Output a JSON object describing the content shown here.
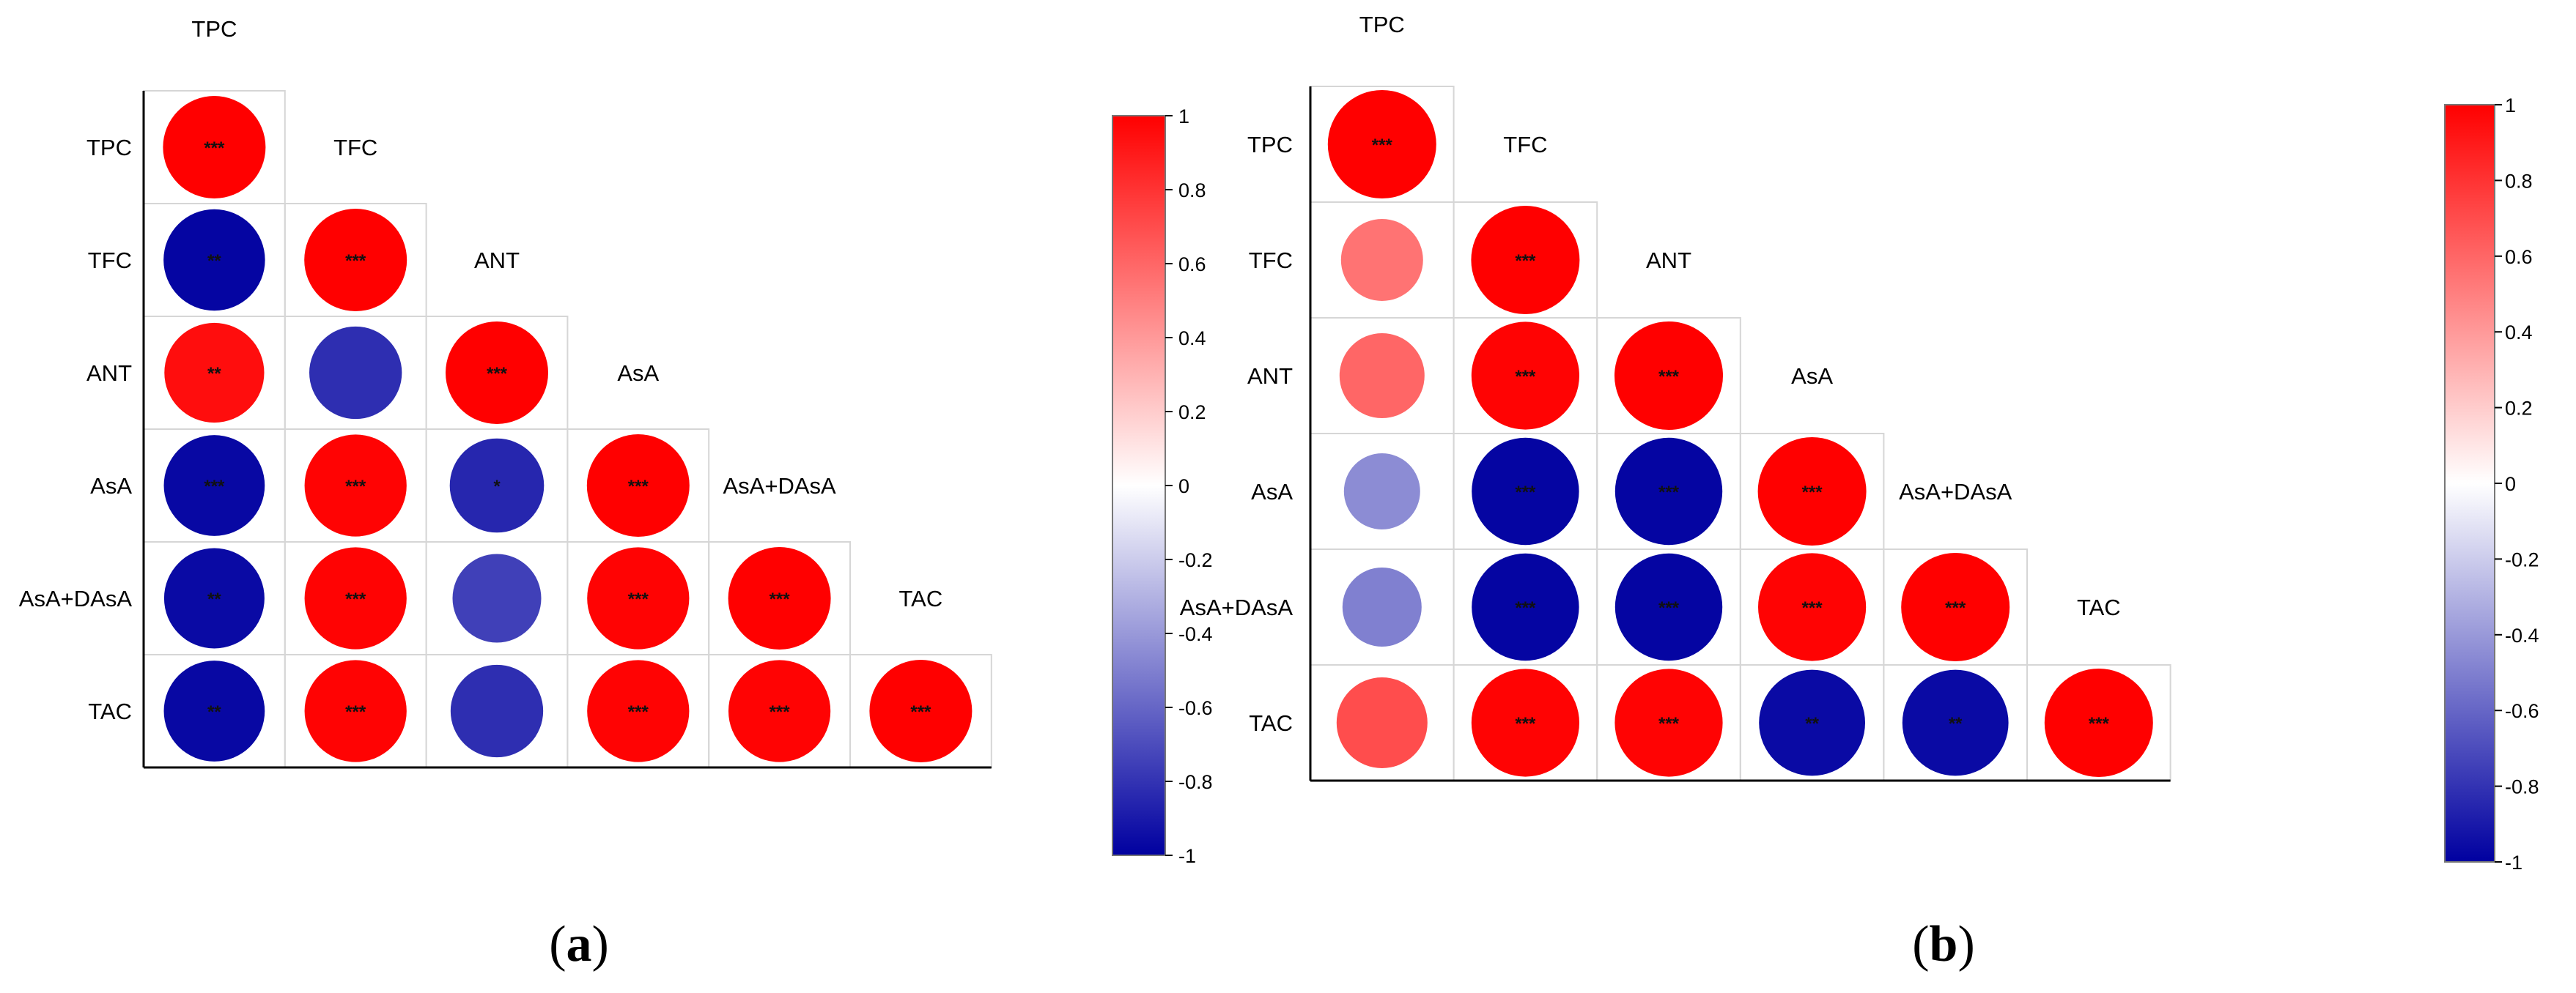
{
  "colors": {
    "positive": "#ff0000",
    "zero": "#ffffff",
    "negative": "#0000a0",
    "grid": "#d6d6d6",
    "axis": "#000000"
  },
  "colorbar": {
    "ticks": [
      1,
      0.8,
      0.6,
      0.4,
      0.2,
      0,
      -0.2,
      -0.4,
      -0.6,
      -0.8,
      -1
    ],
    "tick_labels": [
      "1",
      "0.8",
      "0.6",
      "0.4",
      "0.2",
      "0",
      "-0.2",
      "-0.4",
      "-0.6",
      "-0.8",
      "-1"
    ]
  },
  "chart_data": [
    {
      "type": "heatmap",
      "panel_label": "a",
      "variables": [
        "TPC",
        "TFC",
        "ANT",
        "AsA",
        "AsA+DAsA",
        "TAC"
      ],
      "range": [
        -1,
        1
      ],
      "cells": [
        {
          "row": "TPC",
          "col": "TPC",
          "r": 1.0,
          "sig": "***"
        },
        {
          "row": "TFC",
          "col": "TPC",
          "r": -0.98,
          "sig": "**"
        },
        {
          "row": "TFC",
          "col": "TFC",
          "r": 1.0,
          "sig": "***"
        },
        {
          "row": "ANT",
          "col": "TPC",
          "r": 0.95,
          "sig": "**"
        },
        {
          "row": "ANT",
          "col": "TFC",
          "r": -0.82,
          "sig": ""
        },
        {
          "row": "ANT",
          "col": "ANT",
          "r": 1.0,
          "sig": "***"
        },
        {
          "row": "AsA",
          "col": "TPC",
          "r": -0.97,
          "sig": "***"
        },
        {
          "row": "AsA",
          "col": "TFC",
          "r": 0.99,
          "sig": "***"
        },
        {
          "row": "AsA",
          "col": "ANT",
          "r": -0.85,
          "sig": "*"
        },
        {
          "row": "AsA",
          "col": "AsA",
          "r": 1.0,
          "sig": "***"
        },
        {
          "row": "AsA+DAsA",
          "col": "TPC",
          "r": -0.96,
          "sig": "**"
        },
        {
          "row": "AsA+DAsA",
          "col": "TFC",
          "r": 0.99,
          "sig": "***"
        },
        {
          "row": "AsA+DAsA",
          "col": "ANT",
          "r": -0.75,
          "sig": ""
        },
        {
          "row": "AsA+DAsA",
          "col": "AsA",
          "r": 0.99,
          "sig": "***"
        },
        {
          "row": "AsA+DAsA",
          "col": "AsA+DAsA",
          "r": 1.0,
          "sig": "***"
        },
        {
          "row": "TAC",
          "col": "TPC",
          "r": -0.97,
          "sig": "**"
        },
        {
          "row": "TAC",
          "col": "TFC",
          "r": 0.99,
          "sig": "***"
        },
        {
          "row": "TAC",
          "col": "ANT",
          "r": -0.82,
          "sig": ""
        },
        {
          "row": "TAC",
          "col": "AsA",
          "r": 0.99,
          "sig": "***"
        },
        {
          "row": "TAC",
          "col": "AsA+DAsA",
          "r": 0.99,
          "sig": "***"
        },
        {
          "row": "TAC",
          "col": "TAC",
          "r": 1.0,
          "sig": "***"
        }
      ]
    },
    {
      "type": "heatmap",
      "panel_label": "b",
      "variables": [
        "TPC",
        "TFC",
        "ANT",
        "AsA",
        "AsA+DAsA",
        "TAC"
      ],
      "range": [
        -1,
        1
      ],
      "cells": [
        {
          "row": "TPC",
          "col": "TPC",
          "r": 1.0,
          "sig": "***"
        },
        {
          "row": "TFC",
          "col": "TPC",
          "r": 0.55,
          "sig": ""
        },
        {
          "row": "TFC",
          "col": "TFC",
          "r": 1.0,
          "sig": "***"
        },
        {
          "row": "ANT",
          "col": "TPC",
          "r": 0.6,
          "sig": ""
        },
        {
          "row": "ANT",
          "col": "TFC",
          "r": 0.99,
          "sig": "***"
        },
        {
          "row": "ANT",
          "col": "ANT",
          "r": 1.0,
          "sig": "***"
        },
        {
          "row": "AsA",
          "col": "TPC",
          "r": -0.45,
          "sig": ""
        },
        {
          "row": "AsA",
          "col": "TFC",
          "r": -0.98,
          "sig": "***"
        },
        {
          "row": "AsA",
          "col": "ANT",
          "r": -0.98,
          "sig": "***"
        },
        {
          "row": "AsA",
          "col": "AsA",
          "r": 1.0,
          "sig": "***"
        },
        {
          "row": "AsA+DAsA",
          "col": "TPC",
          "r": -0.5,
          "sig": ""
        },
        {
          "row": "AsA+DAsA",
          "col": "TFC",
          "r": -0.98,
          "sig": "***"
        },
        {
          "row": "AsA+DAsA",
          "col": "ANT",
          "r": -0.98,
          "sig": "***"
        },
        {
          "row": "AsA+DAsA",
          "col": "AsA",
          "r": 0.99,
          "sig": "***"
        },
        {
          "row": "AsA+DAsA",
          "col": "AsA+DAsA",
          "r": 1.0,
          "sig": "***"
        },
        {
          "row": "TAC",
          "col": "TPC",
          "r": 0.7,
          "sig": ""
        },
        {
          "row": "TAC",
          "col": "TFC",
          "r": 0.99,
          "sig": "***"
        },
        {
          "row": "TAC",
          "col": "ANT",
          "r": 0.99,
          "sig": "***"
        },
        {
          "row": "TAC",
          "col": "AsA",
          "r": -0.96,
          "sig": "**"
        },
        {
          "row": "TAC",
          "col": "AsA+DAsA",
          "r": -0.96,
          "sig": "**"
        },
        {
          "row": "TAC",
          "col": "TAC",
          "r": 1.0,
          "sig": "***"
        }
      ]
    }
  ]
}
